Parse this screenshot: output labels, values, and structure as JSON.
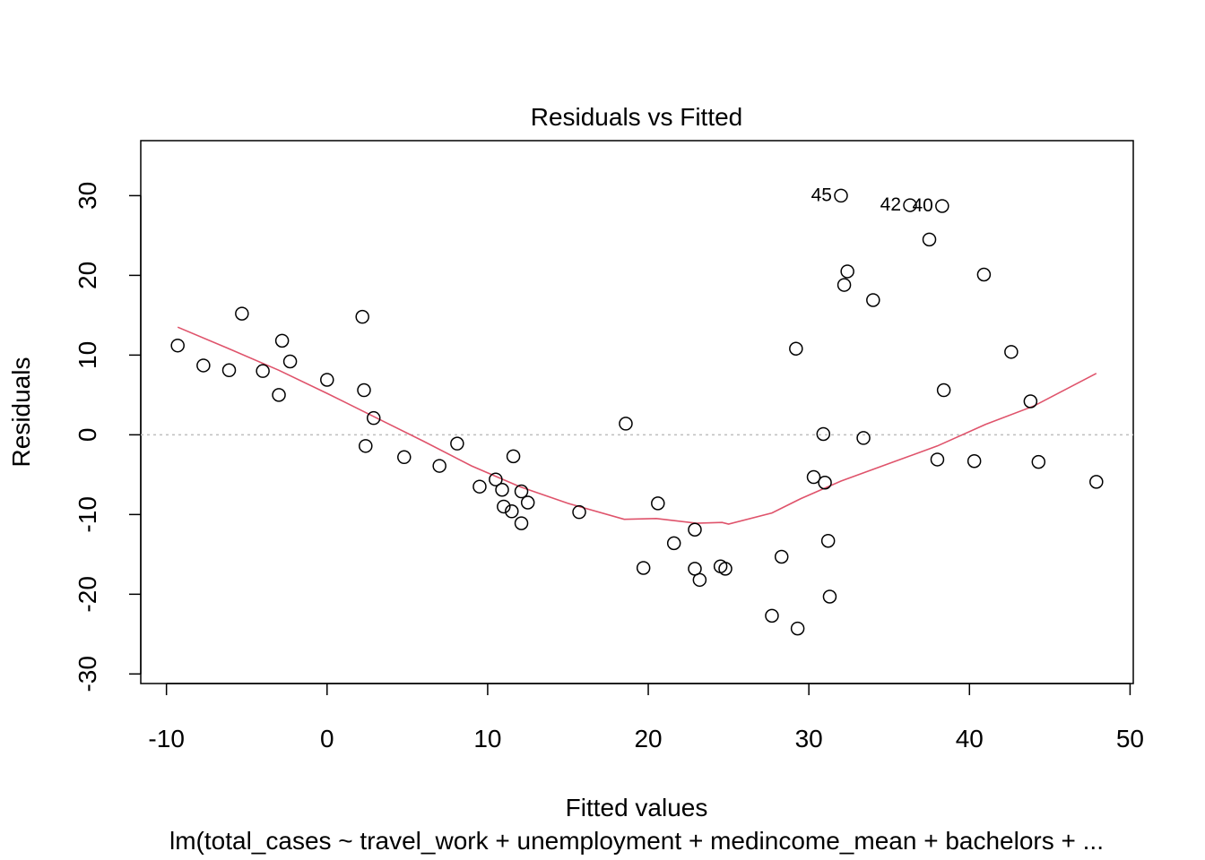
{
  "chart_data": {
    "type": "scatter",
    "title": "Residuals vs Fitted",
    "xlabel": "Fitted values",
    "ylabel": "Residuals",
    "subtitle": "lm(total_cases ~ travel_work + unemployment + medincome_mean + bachelors +  ...",
    "xlim": [
      -11.6,
      50.2
    ],
    "ylim": [
      -31.2,
      36.9
    ],
    "x_ticks": [
      -10,
      0,
      10,
      20,
      30,
      40,
      50
    ],
    "y_ticks": [
      -30,
      -20,
      -10,
      0,
      10,
      20,
      30
    ],
    "reference_line": {
      "y": 0,
      "style": "dotted",
      "color": "#bebebe"
    },
    "points": [
      {
        "x": -9.3,
        "y": 11.2
      },
      {
        "x": -7.7,
        "y": 8.7
      },
      {
        "x": -6.1,
        "y": 8.1
      },
      {
        "x": -5.3,
        "y": 15.2
      },
      {
        "x": -4.0,
        "y": 8.0
      },
      {
        "x": -3.0,
        "y": 5.0
      },
      {
        "x": -2.8,
        "y": 11.8
      },
      {
        "x": -2.3,
        "y": 9.2
      },
      {
        "x": 0.0,
        "y": 6.9
      },
      {
        "x": 2.2,
        "y": 14.8
      },
      {
        "x": 2.3,
        "y": 5.6
      },
      {
        "x": 2.4,
        "y": -1.4
      },
      {
        "x": 2.9,
        "y": 2.1
      },
      {
        "x": 4.8,
        "y": -2.8
      },
      {
        "x": 7.0,
        "y": -3.9
      },
      {
        "x": 8.1,
        "y": -1.1
      },
      {
        "x": 9.5,
        "y": -6.5
      },
      {
        "x": 10.5,
        "y": -5.6
      },
      {
        "x": 10.9,
        "y": -6.9
      },
      {
        "x": 11.0,
        "y": -9.0
      },
      {
        "x": 11.5,
        "y": -9.6
      },
      {
        "x": 11.6,
        "y": -2.7
      },
      {
        "x": 12.1,
        "y": -11.1
      },
      {
        "x": 12.1,
        "y": -7.1
      },
      {
        "x": 12.5,
        "y": -8.5
      },
      {
        "x": 15.7,
        "y": -9.7
      },
      {
        "x": 18.6,
        "y": 1.4
      },
      {
        "x": 19.7,
        "y": -16.7
      },
      {
        "x": 20.6,
        "y": -8.6
      },
      {
        "x": 21.6,
        "y": -13.6
      },
      {
        "x": 22.9,
        "y": -16.8
      },
      {
        "x": 22.9,
        "y": -11.9
      },
      {
        "x": 23.2,
        "y": -18.2
      },
      {
        "x": 24.5,
        "y": -16.5
      },
      {
        "x": 24.8,
        "y": -16.8
      },
      {
        "x": 27.7,
        "y": -22.7
      },
      {
        "x": 28.3,
        "y": -15.3
      },
      {
        "x": 29.2,
        "y": 10.8
      },
      {
        "x": 29.3,
        "y": -24.3
      },
      {
        "x": 30.3,
        "y": -5.3
      },
      {
        "x": 30.9,
        "y": 0.1
      },
      {
        "x": 31.0,
        "y": -6.0
      },
      {
        "x": 31.2,
        "y": -13.3
      },
      {
        "x": 31.3,
        "y": -20.3
      },
      {
        "x": 32.0,
        "y": 30.0,
        "label": "45"
      },
      {
        "x": 32.2,
        "y": 18.8
      },
      {
        "x": 32.4,
        "y": 20.5
      },
      {
        "x": 33.4,
        "y": -0.4
      },
      {
        "x": 34.0,
        "y": 16.9
      },
      {
        "x": 36.3,
        "y": 28.8,
        "label": "42"
      },
      {
        "x": 37.5,
        "y": 24.5
      },
      {
        "x": 38.0,
        "y": -3.1
      },
      {
        "x": 38.3,
        "y": 28.7,
        "label": "40"
      },
      {
        "x": 38.4,
        "y": 5.6
      },
      {
        "x": 40.3,
        "y": -3.3
      },
      {
        "x": 40.9,
        "y": 20.1
      },
      {
        "x": 42.6,
        "y": 10.4
      },
      {
        "x": 43.8,
        "y": 4.2
      },
      {
        "x": 44.3,
        "y": -3.4
      },
      {
        "x": 47.9,
        "y": -5.9
      }
    ],
    "smooth_line": {
      "color": "#df536b",
      "points": [
        [
          -9.3,
          13.5
        ],
        [
          -6,
          10.7
        ],
        [
          -3,
          8.1
        ],
        [
          0,
          5.2
        ],
        [
          3,
          2.2
        ],
        [
          6,
          -0.8
        ],
        [
          9,
          -3.9
        ],
        [
          12,
          -6.5
        ],
        [
          15,
          -8.6
        ],
        [
          18.5,
          -10.6
        ],
        [
          20.5,
          -10.5
        ],
        [
          23,
          -11.1
        ],
        [
          24.6,
          -11.0
        ],
        [
          25,
          -11.2
        ],
        [
          27.7,
          -9.8
        ],
        [
          29.5,
          -8.0
        ],
        [
          32,
          -5.8
        ],
        [
          35,
          -3.6
        ],
        [
          38,
          -1.4
        ],
        [
          41,
          1.3
        ],
        [
          44,
          3.6
        ],
        [
          47.9,
          7.7
        ]
      ]
    }
  }
}
